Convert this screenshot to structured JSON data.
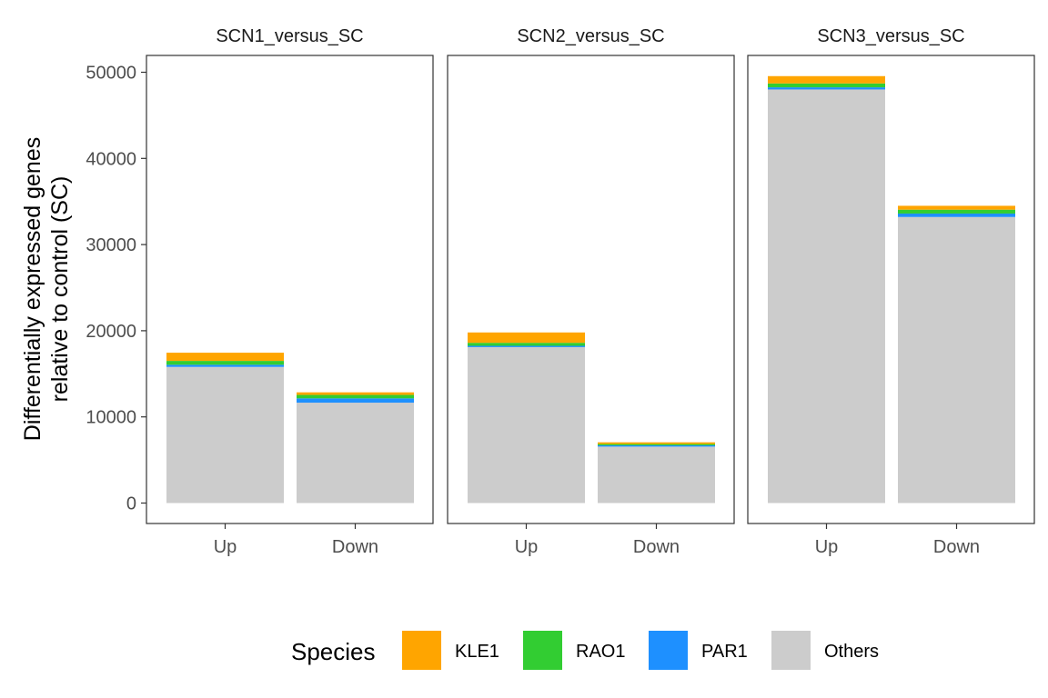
{
  "chart_data": {
    "type": "bar",
    "stacked": true,
    "y_label": [
      "Differentially expressed genes",
      "relative to control (SC)"
    ],
    "y_lim": [
      0,
      52000
    ],
    "y_ticks": [
      0,
      10000,
      20000,
      30000,
      40000,
      50000
    ],
    "categories": [
      "Up",
      "Down"
    ],
    "stack_order_bottom_to_top": [
      "Others",
      "PAR1",
      "RAO1",
      "KLE1"
    ],
    "legend": {
      "title": "Species",
      "position": "bottom",
      "items": [
        {
          "name": "KLE1",
          "color": "#FFA500"
        },
        {
          "name": "RAO1",
          "color": "#32CD32"
        },
        {
          "name": "PAR1",
          "color": "#1E90FF"
        },
        {
          "name": "Others",
          "color": "#CCCCCC"
        }
      ]
    },
    "panels": [
      {
        "title": "SCN1_versus_SC",
        "bars": [
          {
            "category": "Up",
            "values": {
              "Others": 15800,
              "PAR1": 250,
              "RAO1": 450,
              "KLE1": 950
            }
          },
          {
            "category": "Down",
            "values": {
              "Others": 11650,
              "PAR1": 500,
              "RAO1": 400,
              "KLE1": 300
            }
          }
        ]
      },
      {
        "title": "SCN2_versus_SC",
        "bars": [
          {
            "category": "Up",
            "values": {
              "Others": 18100,
              "PAR1": 150,
              "RAO1": 350,
              "KLE1": 1200
            }
          },
          {
            "category": "Down",
            "values": {
              "Others": 6550,
              "PAR1": 150,
              "RAO1": 150,
              "KLE1": 200
            }
          }
        ]
      },
      {
        "title": "SCN3_versus_SC",
        "bars": [
          {
            "category": "Up",
            "values": {
              "Others": 48000,
              "PAR1": 250,
              "RAO1": 450,
              "KLE1": 850
            }
          },
          {
            "category": "Down",
            "values": {
              "Others": 33200,
              "PAR1": 400,
              "RAO1": 450,
              "KLE1": 450
            }
          }
        ]
      }
    ]
  }
}
